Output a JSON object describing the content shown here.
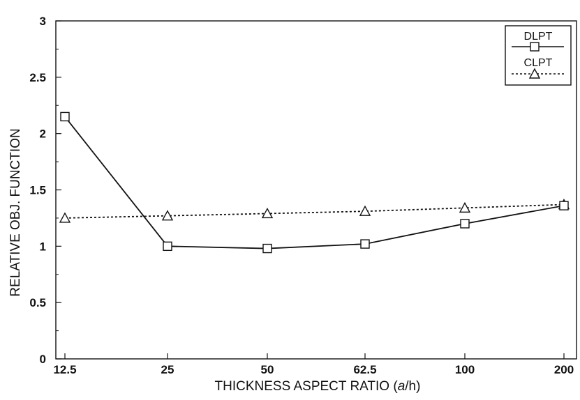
{
  "chart_data": {
    "type": "line",
    "title": "",
    "xlabel": "THICKNESS ASPECT RATIO (a/h)",
    "xlabel_parts": {
      "before": "THICKNESS ASPECT RATIO (",
      "italic": "a",
      "after": "/h)"
    },
    "ylabel": "RELATIVE OBJ. FUNCTION",
    "categories": [
      "12.5",
      "25",
      "50",
      "62.5",
      "100",
      "200"
    ],
    "ylim": [
      0,
      3
    ],
    "y_ticks": [
      "0",
      "0.5",
      "1",
      "1.5",
      "2",
      "2.5",
      "3"
    ],
    "grid": false,
    "legend_position": "top-right",
    "series": [
      {
        "name": "DLPT",
        "marker": "square",
        "line_style": "solid",
        "color": "#111111",
        "values": [
          2.15,
          1.0,
          0.98,
          1.02,
          1.2,
          1.36
        ]
      },
      {
        "name": "CLPT",
        "marker": "triangle",
        "line_style": "dotted",
        "color": "#111111",
        "values": [
          1.25,
          1.27,
          1.29,
          1.31,
          1.34,
          1.37
        ]
      }
    ]
  }
}
